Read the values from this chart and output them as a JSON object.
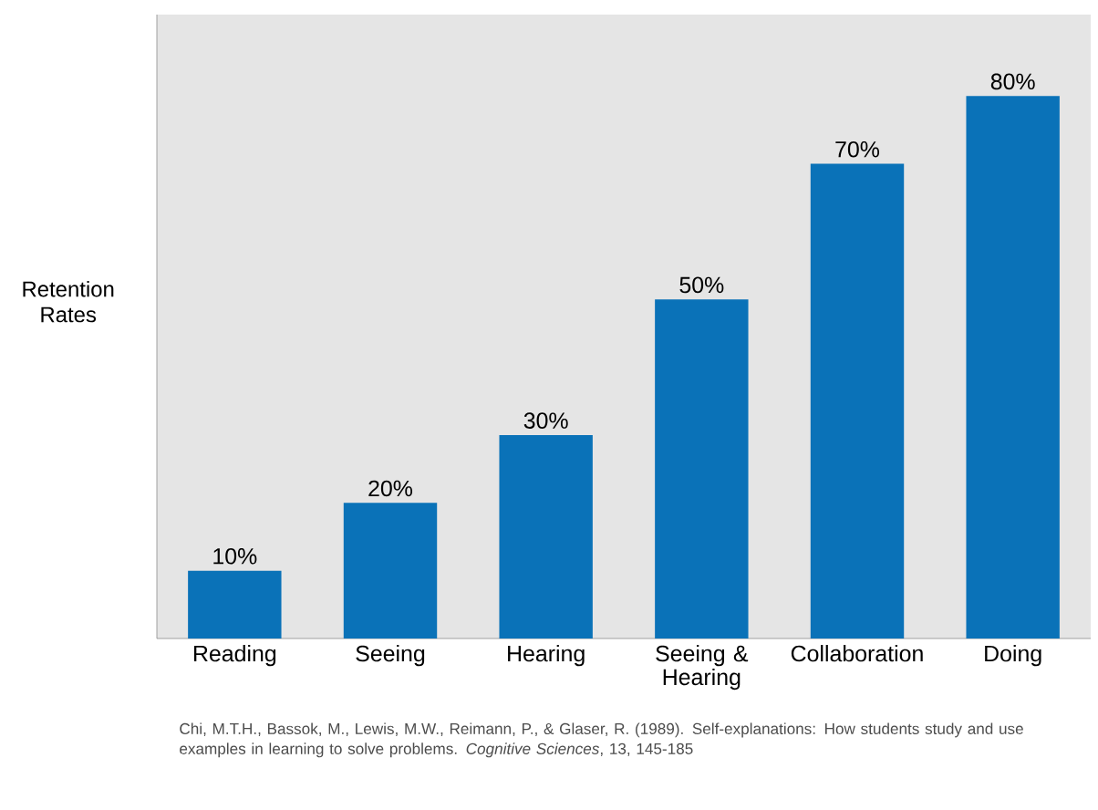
{
  "chart_data": {
    "type": "bar",
    "ylabel": "Retention Rates",
    "categories": [
      "Reading",
      "Seeing",
      "Hearing",
      "Seeing & Hearing",
      "Collaboration",
      "Doing"
    ],
    "values": [
      10,
      20,
      30,
      50,
      70,
      80
    ],
    "value_labels": [
      "10%",
      "20%",
      "30%",
      "50%",
      "70%",
      "80%"
    ],
    "color": "#0a72b8",
    "annotations": [
      "Chi, M.T.H., Bassok, M., Lewis, M.W., Reimann, P., & Glaser, R. (1989). Self-explanations: How students study and use examples in learning to solve problems. *Cognitive Sciences*, 13, 145-185"
    ]
  }
}
